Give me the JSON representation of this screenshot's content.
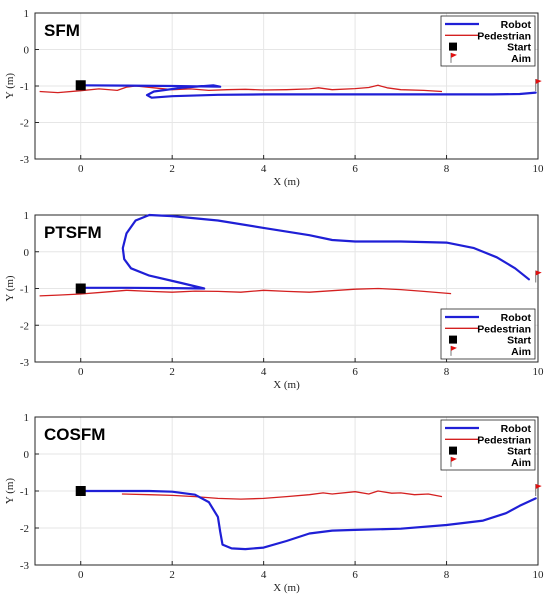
{
  "chart_data": [
    {
      "type": "line",
      "title": "SFM",
      "xlabel": "X (m)",
      "ylabel": "Y (m)",
      "xlim": [
        -1,
        10
      ],
      "ylim": [
        -3,
        1
      ],
      "xticks": [
        "0",
        "2",
        "4",
        "6",
        "8",
        "10"
      ],
      "yticks": [
        "-3",
        "-2",
        "-1",
        "0",
        "1"
      ],
      "grid": true,
      "legend_position": "top-right",
      "legend": [
        "Robot",
        "Pedestrian",
        "Start",
        "Aim"
      ],
      "colors": {
        "robot": "#1f1fd6",
        "pedestrian": "#d42020",
        "start": "#000000",
        "aim": "#e01010"
      },
      "series": [
        {
          "name": "Robot",
          "x": [
            0,
            1,
            2,
            3.05,
            2.9,
            2.2,
            1.6,
            1.45,
            1.55,
            2,
            3,
            4,
            5,
            6,
            7,
            8,
            9,
            9.6,
            9.95
          ],
          "y": [
            -0.98,
            -0.99,
            -1.0,
            -1.02,
            -0.98,
            -1.05,
            -1.15,
            -1.25,
            -1.32,
            -1.28,
            -1.24,
            -1.23,
            -1.23,
            -1.23,
            -1.23,
            -1.23,
            -1.23,
            -1.22,
            -1.18
          ]
        },
        {
          "name": "Pedestrian",
          "x": [
            -0.9,
            -0.5,
            0,
            0.4,
            0.8,
            1,
            1.2,
            1.6,
            2,
            2.4,
            2.8,
            3.2,
            3.6,
            4,
            4.5,
            5,
            5.2,
            5.5,
            6,
            6.3,
            6.5,
            6.7,
            7,
            7.5,
            7.9
          ],
          "y": [
            -1.15,
            -1.18,
            -1.13,
            -1.08,
            -1.12,
            -1.03,
            -1.0,
            -1.05,
            -1.1,
            -1.08,
            -1.12,
            -1.1,
            -1.09,
            -1.11,
            -1.1,
            -1.08,
            -1.05,
            -1.1,
            -1.07,
            -1.04,
            -0.98,
            -1.05,
            -1.1,
            -1.12,
            -1.15
          ]
        }
      ],
      "start": {
        "x": 0,
        "y": -0.98
      },
      "aim": {
        "x": 9.95,
        "y": -1.0
      }
    },
    {
      "type": "line",
      "title": "PTSFM",
      "xlabel": "X (m)",
      "ylabel": "Y (m)",
      "xlim": [
        -1,
        10
      ],
      "ylim": [
        -3,
        1
      ],
      "xticks": [
        "0",
        "2",
        "4",
        "6",
        "8",
        "10"
      ],
      "yticks": [
        "-3",
        "-2",
        "-1",
        "0",
        "1"
      ],
      "grid": true,
      "legend_position": "bottom-right",
      "legend": [
        "Robot",
        "Pedestrian",
        "Start",
        "Aim"
      ],
      "colors": {
        "robot": "#1f1fd6",
        "pedestrian": "#d42020",
        "start": "#000000",
        "aim": "#e01010"
      },
      "series": [
        {
          "name": "Robot",
          "x": [
            0,
            1,
            2,
            2.7,
            2.2,
            1.5,
            1.1,
            0.95,
            0.92,
            1.0,
            1.2,
            1.5,
            2,
            3,
            4,
            5,
            5.5,
            6,
            7,
            8,
            8.6,
            9.1,
            9.5,
            9.8
          ],
          "y": [
            -0.98,
            -0.98,
            -0.99,
            -1.0,
            -0.85,
            -0.65,
            -0.45,
            -0.2,
            0.1,
            0.5,
            0.85,
            1.0,
            0.97,
            0.85,
            0.65,
            0.45,
            0.32,
            0.28,
            0.28,
            0.25,
            0.1,
            -0.15,
            -0.45,
            -0.75
          ]
        },
        {
          "name": "Pedestrian",
          "x": [
            -0.9,
            -0.5,
            0,
            0.5,
            1,
            1.5,
            2,
            2.5,
            3,
            3.5,
            4,
            4.5,
            5,
            5.5,
            6,
            6.5,
            7,
            7.5,
            8.1
          ],
          "y": [
            -1.2,
            -1.18,
            -1.15,
            -1.1,
            -1.05,
            -1.08,
            -1.1,
            -1.07,
            -1.08,
            -1.1,
            -1.05,
            -1.08,
            -1.1,
            -1.06,
            -1.02,
            -1.0,
            -1.03,
            -1.08,
            -1.14
          ]
        }
      ],
      "start": {
        "x": 0,
        "y": -1.0
      },
      "aim": {
        "x": 9.95,
        "y": -0.7
      }
    },
    {
      "type": "line",
      "title": "COSFM",
      "xlabel": "X (m)",
      "ylabel": "Y (m)",
      "xlim": [
        -1,
        10
      ],
      "ylim": [
        -3,
        1
      ],
      "xticks": [
        "0",
        "2",
        "4",
        "6",
        "8",
        "10"
      ],
      "yticks": [
        "-3",
        "-2",
        "-1",
        "0",
        "1"
      ],
      "grid": true,
      "legend_position": "top-right",
      "legend": [
        "Robot",
        "Pedestrian",
        "Start",
        "Aim"
      ],
      "colors": {
        "robot": "#1f1fd6",
        "pedestrian": "#d42020",
        "start": "#000000",
        "aim": "#e01010"
      },
      "series": [
        {
          "name": "Robot",
          "x": [
            0,
            0.5,
            1,
            1.5,
            2,
            2.5,
            2.8,
            3.0,
            3.05,
            3.1,
            3.3,
            3.6,
            4,
            4.5,
            5,
            5.5,
            6,
            7,
            8,
            8.8,
            9.3,
            9.6,
            9.95
          ],
          "y": [
            -1.0,
            -1.0,
            -1.0,
            -1.0,
            -1.02,
            -1.1,
            -1.3,
            -1.7,
            -2.1,
            -2.45,
            -2.55,
            -2.57,
            -2.53,
            -2.35,
            -2.15,
            -2.07,
            -2.05,
            -2.02,
            -1.92,
            -1.8,
            -1.6,
            -1.4,
            -1.2
          ]
        },
        {
          "name": "Pedestrian",
          "x": [
            0.9,
            1.5,
            2,
            2.5,
            3,
            3.5,
            4,
            4.5,
            5,
            5.3,
            5.5,
            6,
            6.3,
            6.5,
            6.8,
            7,
            7.3,
            7.6,
            7.9
          ],
          "y": [
            -1.08,
            -1.1,
            -1.12,
            -1.15,
            -1.2,
            -1.22,
            -1.2,
            -1.15,
            -1.1,
            -1.05,
            -1.08,
            -1.02,
            -1.08,
            -1.0,
            -1.06,
            -1.05,
            -1.1,
            -1.08,
            -1.15
          ]
        }
      ],
      "start": {
        "x": 0,
        "y": -1.0
      },
      "aim": {
        "x": 9.95,
        "y": -1.0
      }
    }
  ]
}
